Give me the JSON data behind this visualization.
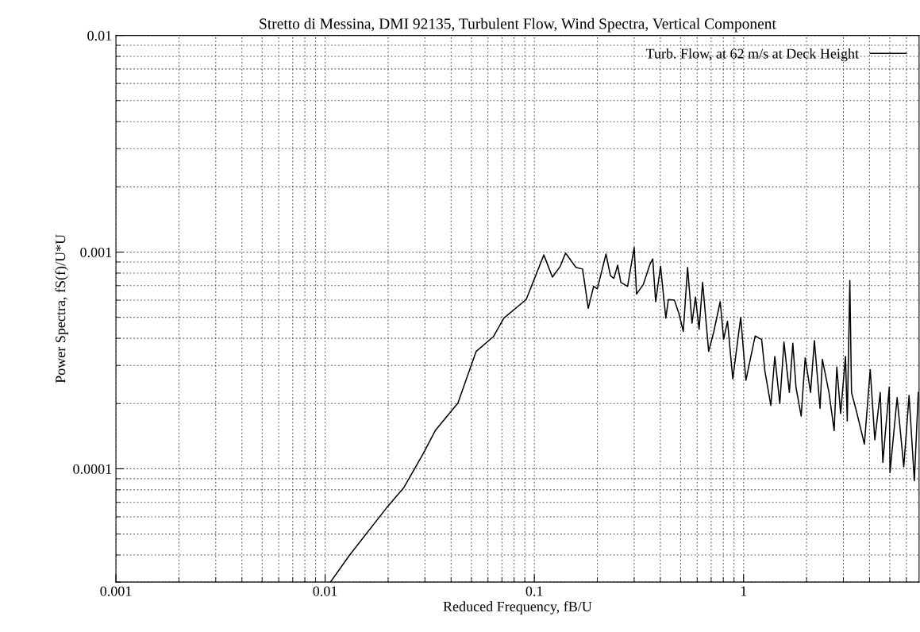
{
  "chart_data": {
    "type": "line",
    "title": "Stretto di Messina, DMI 92135, Turbulent Flow, Wind Spectra, Vertical Component",
    "xlabel": "Reduced Frequency, fB/U",
    "ylabel": "Power Spectra, fS(f)/U*U",
    "log": "xy",
    "xlim": [
      0.001,
      6.9
    ],
    "ylim": [
      3e-05,
      0.01
    ],
    "xticks": [
      0.001,
      0.01,
      0.1,
      1
    ],
    "yticks": [
      0.0001,
      0.001,
      0.01
    ],
    "grid": true,
    "legend": "top right",
    "line_style": "solid",
    "marker": "none",
    "series": [
      {
        "name": "Turb. Flow, at 62 m/s at Deck Height",
        "color": "#000000",
        "x": [
          0.0106,
          0.0131,
          0.0199,
          0.0238,
          0.0295,
          0.0336,
          0.0431,
          0.0527,
          0.0637,
          0.0715,
          0.0914,
          0.111,
          0.122,
          0.133,
          0.141,
          0.158,
          0.17,
          0.181,
          0.192,
          0.2,
          0.22,
          0.231,
          0.24,
          0.25,
          0.259,
          0.279,
          0.3,
          0.308,
          0.332,
          0.357,
          0.368,
          0.38,
          0.401,
          0.425,
          0.437,
          0.467,
          0.491,
          0.515,
          0.54,
          0.567,
          0.589,
          0.613,
          0.637,
          0.681,
          0.721,
          0.773,
          0.803,
          0.838,
          0.888,
          0.969,
          1.026,
          1.136,
          1.22,
          1.265,
          1.35,
          1.41,
          1.49,
          1.56,
          1.655,
          1.72,
          1.78,
          1.885,
          1.97,
          2.09,
          2.18,
          2.32,
          2.38,
          2.56,
          2.71,
          2.79,
          2.91,
          3.07,
          3.13,
          3.22,
          3.28,
          3.46,
          3.78,
          4.03,
          4.24,
          4.5,
          4.63,
          4.97,
          5.01,
          5.42,
          5.83,
          6.18,
          6.55,
          6.84
        ],
        "values": [
          3e-05,
          4e-05,
          6.7e-05,
          8.2e-05,
          0.000118,
          0.00015,
          0.000201,
          0.000348,
          0.000407,
          0.000496,
          0.000604,
          0.00097,
          0.000767,
          0.00086,
          0.00099,
          0.00085,
          0.000835,
          0.00055,
          0.000695,
          0.000676,
          0.00098,
          0.000778,
          0.000756,
          0.00087,
          0.000725,
          0.000695,
          0.00105,
          0.00064,
          0.00071,
          0.00088,
          0.00093,
          0.00059,
          0.00086,
          0.000496,
          0.000604,
          0.0006,
          0.00052,
          0.00043,
          0.00085,
          0.00047,
          0.00062,
          0.00044,
          0.000725,
          0.000348,
          0.00043,
          0.00059,
          0.000396,
          0.00048,
          0.00026,
          0.0005,
          0.000256,
          0.00041,
          0.000395,
          0.000282,
          0.000196,
          0.00033,
          0.0002,
          0.000385,
          0.000225,
          0.00038,
          0.000238,
          0.000175,
          0.000325,
          0.000225,
          0.00039,
          0.00019,
          0.00032,
          0.000225,
          0.00015,
          0.000295,
          0.00018,
          0.00033,
          0.000166,
          0.00074,
          0.000225,
          0.000185,
          0.00013,
          0.000287,
          0.000136,
          0.000225,
          0.000107,
          0.000238,
          9.6e-05,
          0.000213,
          0.000102,
          0.000218,
          8.8e-05,
          0.000225
        ]
      }
    ]
  }
}
